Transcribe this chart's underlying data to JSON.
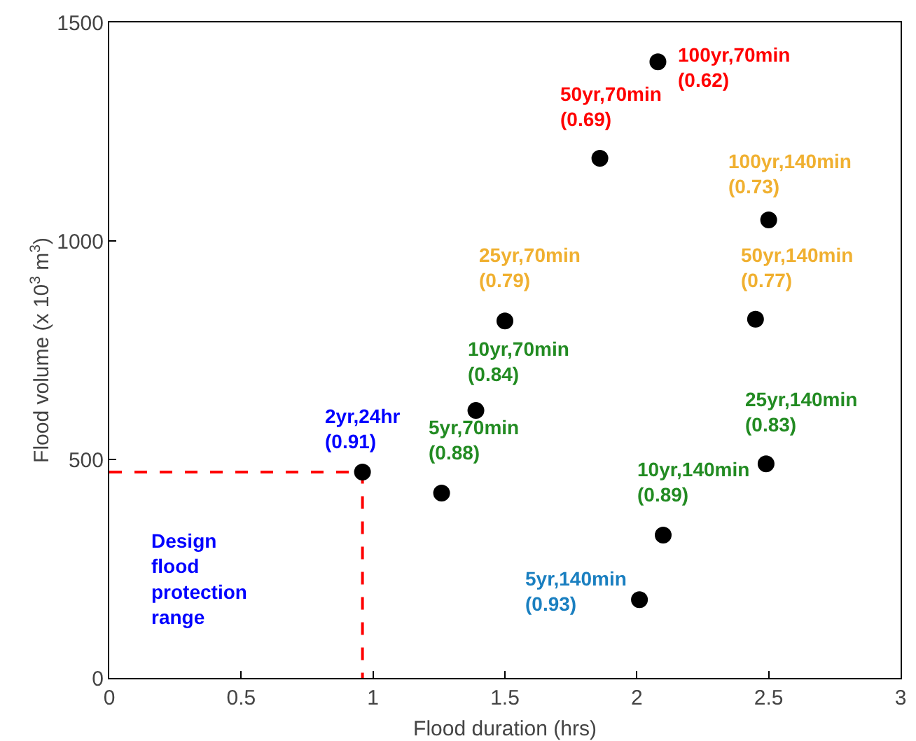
{
  "chart_data": {
    "type": "scatter",
    "xlabel": "Flood duration (hrs)",
    "ylabel": "Flood volume (x 10$^{3}$ m$^{3}$)",
    "xlim": [
      0,
      3
    ],
    "xticks": [
      0,
      0.5,
      1,
      1.5,
      2,
      2.5,
      3
    ],
    "ylim": [
      0,
      1500
    ],
    "yticks": [
      0,
      500,
      1000,
      1500
    ],
    "grid": false,
    "series": [
      {
        "type": "line",
        "color": "#ff0000",
        "line_style": "dashed",
        "marker": "none",
        "x": [
          0,
          0.96,
          0.96
        ],
        "values": [
          471,
          471,
          0
        ]
      },
      {
        "color": "#000000",
        "marker": "circle",
        "x": [
          0.96,
          1.26,
          1.39,
          1.5,
          1.86,
          2.08,
          2.01,
          2.1,
          2.49,
          2.45,
          2.5
        ],
        "values": [
          471,
          423,
          612,
          817,
          1189,
          1410,
          179,
          327,
          490,
          821,
          1048
        ]
      }
    ],
    "annotations": [
      {
        "text": "2yr,24hr\n(0.91)",
        "x": 0.96,
        "y": 471
      },
      {
        "text": "5yr,70min\n(0.88)",
        "x": 1.26,
        "y": 423
      },
      {
        "text": "10yr,70min\n(0.84)",
        "x": 1.39,
        "y": 612
      },
      {
        "text": "25yr,70min\n(0.79)",
        "x": 1.5,
        "y": 817
      },
      {
        "text": "50yr,70min\n(0.69)",
        "x": 1.86,
        "y": 1189
      },
      {
        "text": "100yr,70min\n(0.62)",
        "x": 2.08,
        "y": 1410
      },
      {
        "text": "5yr,140min\n(0.93)",
        "x": 2.01,
        "y": 179
      },
      {
        "text": "10yr,140min\n(0.89)",
        "x": 2.1,
        "y": 327
      },
      {
        "text": "25yr,140min\n(0.83)",
        "x": 2.49,
        "y": 490
      },
      {
        "text": "50yr,140min\n(0.77)",
        "x": 2.45,
        "y": 821
      },
      {
        "text": "100yr,140min\n(0.73)",
        "x": 2.5,
        "y": 1048
      },
      "Design\nflood\nprotection\nrange"
    ]
  }
}
